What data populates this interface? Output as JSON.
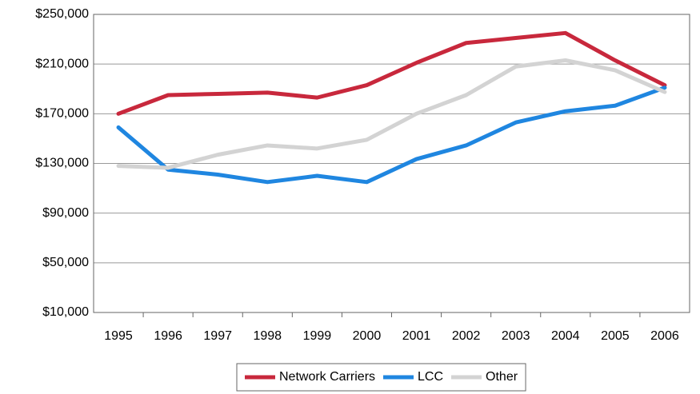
{
  "chart_data": {
    "type": "line",
    "categories": [
      "1995",
      "1996",
      "1997",
      "1998",
      "1999",
      "2000",
      "2001",
      "2002",
      "2003",
      "2004",
      "2005",
      "2006"
    ],
    "series": [
      {
        "name": "Network Carriers",
        "color": "#c8283c",
        "values": [
          170000,
          185000,
          186000,
          187000,
          183000,
          193000,
          211000,
          227000,
          231000,
          235000,
          213000,
          193000
        ]
      },
      {
        "name": "LCC",
        "color": "#1f86e0",
        "values": [
          159000,
          125000,
          121000,
          115000,
          120000,
          115000,
          133500,
          144500,
          163000,
          172000,
          176500,
          191000
        ]
      },
      {
        "name": "Other",
        "color": "#d3d3d3",
        "values": [
          128000,
          126500,
          137000,
          144500,
          142000,
          149000,
          170000,
          185000,
          208000,
          213000,
          205000,
          187500
        ]
      }
    ],
    "ylim": [
      10000,
      250000
    ],
    "yticks": [
      {
        "value": 10000,
        "label": "$10,000"
      },
      {
        "value": 50000,
        "label": "$50,000"
      },
      {
        "value": 90000,
        "label": "$90,000"
      },
      {
        "value": 130000,
        "label": "$130,000"
      },
      {
        "value": 170000,
        "label": "$170,000"
      },
      {
        "value": 210000,
        "label": "$210,000"
      },
      {
        "value": 250000,
        "label": "$250,000"
      }
    ],
    "grid": true,
    "legend": "bottom"
  }
}
